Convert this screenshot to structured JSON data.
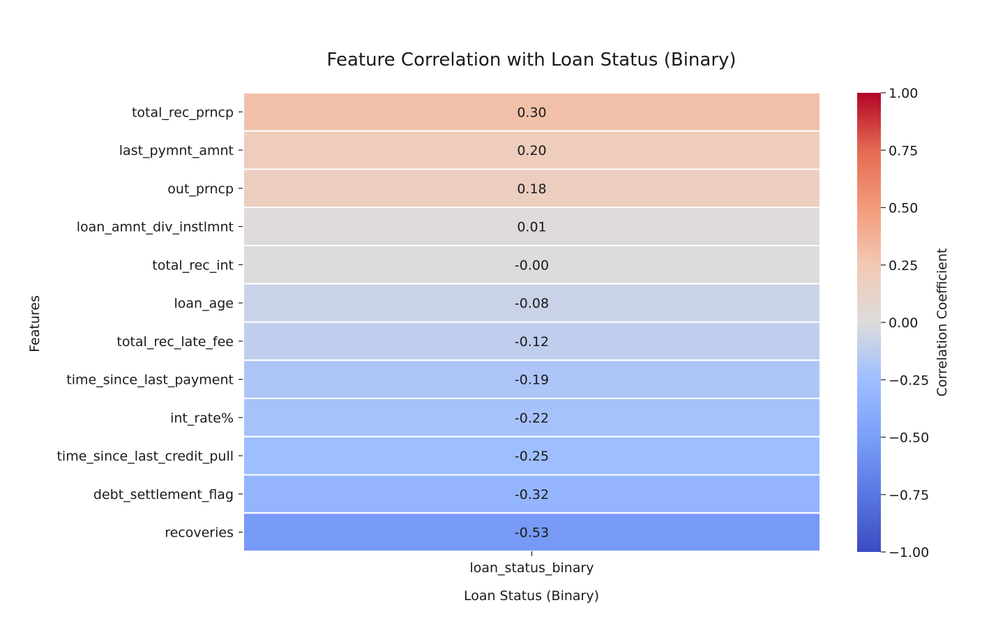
{
  "chart_data": {
    "type": "heatmap",
    "title": "Feature Correlation with Loan Status (Binary)",
    "xlabel": "Loan Status (Binary)",
    "ylabel": "Features",
    "columns": [
      "loan_status_binary"
    ],
    "rows": [
      {
        "feature": "total_rec_prncp",
        "value": 0.3,
        "label": "0.30"
      },
      {
        "feature": "last_pymnt_amnt",
        "value": 0.2,
        "label": "0.20"
      },
      {
        "feature": "out_prncp",
        "value": 0.18,
        "label": "0.18"
      },
      {
        "feature": "loan_amnt_div_instlmnt",
        "value": 0.01,
        "label": "0.01"
      },
      {
        "feature": "total_rec_int",
        "value": -0.0,
        "label": "-0.00"
      },
      {
        "feature": "loan_age",
        "value": -0.08,
        "label": "-0.08"
      },
      {
        "feature": "total_rec_late_fee",
        "value": -0.12,
        "label": "-0.12"
      },
      {
        "feature": "time_since_last_payment",
        "value": -0.19,
        "label": "-0.19"
      },
      {
        "feature": "int_rate%",
        "value": -0.22,
        "label": "-0.22"
      },
      {
        "feature": "time_since_last_credit_pull",
        "value": -0.25,
        "label": "-0.25"
      },
      {
        "feature": "debt_settlement_flag",
        "value": -0.32,
        "label": "-0.32"
      },
      {
        "feature": "recoveries",
        "value": -0.53,
        "label": "-0.53"
      }
    ],
    "colorbar": {
      "label": "Correlation Coefficient",
      "range": [
        -1.0,
        1.0
      ],
      "colormap": "coolwarm",
      "ticks": [
        {
          "value": 1.0,
          "label": "1.00"
        },
        {
          "value": 0.75,
          "label": "0.75"
        },
        {
          "value": 0.5,
          "label": "0.50"
        },
        {
          "value": 0.25,
          "label": "0.25"
        },
        {
          "value": 0.0,
          "label": "0.00"
        },
        {
          "value": -0.25,
          "label": "−0.25"
        },
        {
          "value": -0.5,
          "label": "−0.50"
        },
        {
          "value": -0.75,
          "label": "−0.75"
        },
        {
          "value": -1.0,
          "label": "−1.00"
        }
      ]
    }
  }
}
